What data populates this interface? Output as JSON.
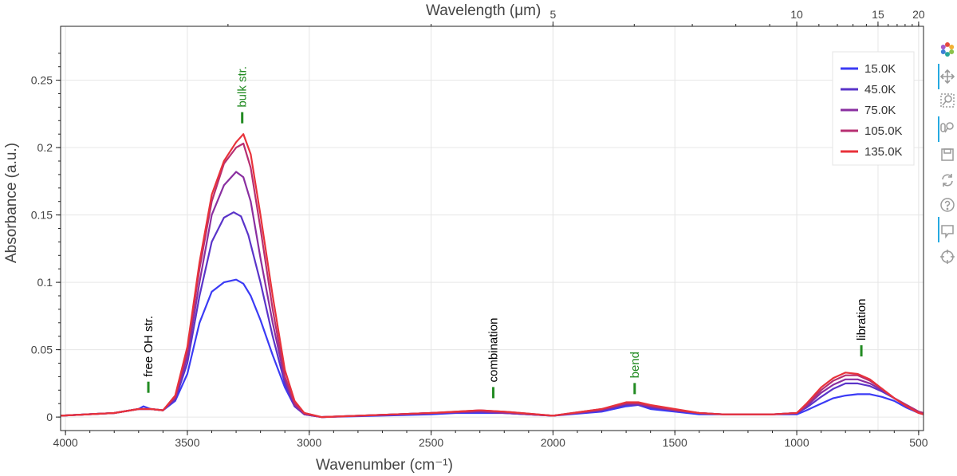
{
  "chart_data": {
    "type": "line",
    "xlabel": "Wavenumber (cm⁻¹)",
    "x2label": "Wavelength (μm)",
    "ylabel": "Absorbance (a.u.)",
    "xlim": [
      4020,
      480
    ],
    "ylim": [
      -0.01,
      0.29
    ],
    "x_ticks": [
      4000,
      3500,
      3000,
      2500,
      2000,
      1500,
      1000,
      500
    ],
    "y_ticks": [
      0,
      0.05,
      0.1,
      0.15,
      0.2,
      0.25
    ],
    "x2_ticks": [
      5,
      10,
      15,
      20
    ],
    "grid": true,
    "legend_position": "top-right",
    "series": [
      {
        "name": "15.0K",
        "color": "#3b3bf5",
        "points": [
          [
            4020,
            0.001
          ],
          [
            3800,
            0.003
          ],
          [
            3700,
            0.006
          ],
          [
            3680,
            0.008
          ],
          [
            3650,
            0.006
          ],
          [
            3600,
            0.005
          ],
          [
            3550,
            0.012
          ],
          [
            3500,
            0.032
          ],
          [
            3450,
            0.07
          ],
          [
            3400,
            0.093
          ],
          [
            3350,
            0.1
          ],
          [
            3300,
            0.102
          ],
          [
            3270,
            0.099
          ],
          [
            3240,
            0.09
          ],
          [
            3200,
            0.072
          ],
          [
            3150,
            0.046
          ],
          [
            3100,
            0.022
          ],
          [
            3060,
            0.008
          ],
          [
            3020,
            0.002
          ],
          [
            2950,
            0.0
          ],
          [
            2500,
            0.002
          ],
          [
            2400,
            0.003
          ],
          [
            2300,
            0.003
          ],
          [
            2200,
            0.003
          ],
          [
            2000,
            0.001
          ],
          [
            1800,
            0.004
          ],
          [
            1700,
            0.008
          ],
          [
            1650,
            0.009
          ],
          [
            1600,
            0.006
          ],
          [
            1500,
            0.004
          ],
          [
            1400,
            0.002
          ],
          [
            1300,
            0.002
          ],
          [
            1100,
            0.002
          ],
          [
            1000,
            0.002
          ],
          [
            960,
            0.005
          ],
          [
            900,
            0.01
          ],
          [
            850,
            0.014
          ],
          [
            800,
            0.016
          ],
          [
            750,
            0.017
          ],
          [
            700,
            0.017
          ],
          [
            650,
            0.015
          ],
          [
            600,
            0.012
          ],
          [
            550,
            0.007
          ],
          [
            500,
            0.003
          ],
          [
            480,
            0.002
          ]
        ]
      },
      {
        "name": "45.0K",
        "color": "#5a34c9",
        "points": [
          [
            4020,
            0.001
          ],
          [
            3800,
            0.003
          ],
          [
            3700,
            0.006
          ],
          [
            3650,
            0.006
          ],
          [
            3600,
            0.005
          ],
          [
            3550,
            0.013
          ],
          [
            3500,
            0.04
          ],
          [
            3450,
            0.09
          ],
          [
            3400,
            0.13
          ],
          [
            3350,
            0.148
          ],
          [
            3310,
            0.152
          ],
          [
            3280,
            0.149
          ],
          [
            3250,
            0.135
          ],
          [
            3200,
            0.1
          ],
          [
            3150,
            0.06
          ],
          [
            3100,
            0.025
          ],
          [
            3060,
            0.008
          ],
          [
            3020,
            0.002
          ],
          [
            2950,
            0.0
          ],
          [
            2500,
            0.003
          ],
          [
            2300,
            0.004
          ],
          [
            2200,
            0.003
          ],
          [
            2000,
            0.001
          ],
          [
            1800,
            0.005
          ],
          [
            1700,
            0.009
          ],
          [
            1650,
            0.009
          ],
          [
            1600,
            0.007
          ],
          [
            1500,
            0.005
          ],
          [
            1400,
            0.003
          ],
          [
            1300,
            0.002
          ],
          [
            1100,
            0.002
          ],
          [
            1000,
            0.003
          ],
          [
            960,
            0.007
          ],
          [
            900,
            0.015
          ],
          [
            850,
            0.021
          ],
          [
            800,
            0.025
          ],
          [
            750,
            0.025
          ],
          [
            700,
            0.023
          ],
          [
            650,
            0.019
          ],
          [
            600,
            0.014
          ],
          [
            550,
            0.009
          ],
          [
            500,
            0.004
          ],
          [
            480,
            0.003
          ]
        ]
      },
      {
        "name": "75.0K",
        "color": "#8a2fa0",
        "points": [
          [
            4020,
            0.001
          ],
          [
            3800,
            0.003
          ],
          [
            3700,
            0.006
          ],
          [
            3650,
            0.006
          ],
          [
            3600,
            0.005
          ],
          [
            3550,
            0.014
          ],
          [
            3500,
            0.045
          ],
          [
            3450,
            0.1
          ],
          [
            3400,
            0.15
          ],
          [
            3350,
            0.172
          ],
          [
            3300,
            0.182
          ],
          [
            3270,
            0.178
          ],
          [
            3240,
            0.16
          ],
          [
            3200,
            0.118
          ],
          [
            3150,
            0.07
          ],
          [
            3100,
            0.028
          ],
          [
            3060,
            0.009
          ],
          [
            3020,
            0.002
          ],
          [
            2950,
            0.0
          ],
          [
            2500,
            0.003
          ],
          [
            2300,
            0.004
          ],
          [
            2200,
            0.003
          ],
          [
            2000,
            0.001
          ],
          [
            1800,
            0.005
          ],
          [
            1700,
            0.01
          ],
          [
            1650,
            0.01
          ],
          [
            1600,
            0.008
          ],
          [
            1500,
            0.005
          ],
          [
            1400,
            0.003
          ],
          [
            1300,
            0.002
          ],
          [
            1100,
            0.002
          ],
          [
            1000,
            0.003
          ],
          [
            960,
            0.008
          ],
          [
            900,
            0.018
          ],
          [
            850,
            0.024
          ],
          [
            800,
            0.028
          ],
          [
            750,
            0.028
          ],
          [
            700,
            0.025
          ],
          [
            650,
            0.02
          ],
          [
            600,
            0.014
          ],
          [
            550,
            0.009
          ],
          [
            500,
            0.004
          ],
          [
            480,
            0.003
          ]
        ]
      },
      {
        "name": "105.0K",
        "color": "#b72f72",
        "points": [
          [
            4020,
            0.001
          ],
          [
            3800,
            0.003
          ],
          [
            3700,
            0.006
          ],
          [
            3650,
            0.006
          ],
          [
            3600,
            0.005
          ],
          [
            3550,
            0.015
          ],
          [
            3500,
            0.05
          ],
          [
            3450,
            0.11
          ],
          [
            3400,
            0.16
          ],
          [
            3350,
            0.188
          ],
          [
            3300,
            0.2
          ],
          [
            3270,
            0.203
          ],
          [
            3240,
            0.185
          ],
          [
            3200,
            0.14
          ],
          [
            3150,
            0.08
          ],
          [
            3100,
            0.03
          ],
          [
            3060,
            0.01
          ],
          [
            3020,
            0.003
          ],
          [
            2950,
            0.0
          ],
          [
            2500,
            0.003
          ],
          [
            2300,
            0.005
          ],
          [
            2200,
            0.004
          ],
          [
            2000,
            0.001
          ],
          [
            1800,
            0.006
          ],
          [
            1700,
            0.01
          ],
          [
            1650,
            0.01
          ],
          [
            1600,
            0.008
          ],
          [
            1500,
            0.005
          ],
          [
            1400,
            0.003
          ],
          [
            1300,
            0.002
          ],
          [
            1100,
            0.002
          ],
          [
            1000,
            0.003
          ],
          [
            960,
            0.009
          ],
          [
            900,
            0.02
          ],
          [
            850,
            0.027
          ],
          [
            800,
            0.031
          ],
          [
            750,
            0.031
          ],
          [
            700,
            0.027
          ],
          [
            650,
            0.021
          ],
          [
            600,
            0.014
          ],
          [
            550,
            0.009
          ],
          [
            500,
            0.004
          ],
          [
            480,
            0.003
          ]
        ]
      },
      {
        "name": "135.0K",
        "color": "#e8323a",
        "points": [
          [
            4020,
            0.001
          ],
          [
            3800,
            0.003
          ],
          [
            3700,
            0.006
          ],
          [
            3650,
            0.006
          ],
          [
            3600,
            0.005
          ],
          [
            3550,
            0.016
          ],
          [
            3500,
            0.052
          ],
          [
            3450,
            0.115
          ],
          [
            3400,
            0.165
          ],
          [
            3350,
            0.19
          ],
          [
            3300,
            0.204
          ],
          [
            3270,
            0.21
          ],
          [
            3240,
            0.195
          ],
          [
            3200,
            0.15
          ],
          [
            3150,
            0.09
          ],
          [
            3100,
            0.035
          ],
          [
            3060,
            0.012
          ],
          [
            3020,
            0.003
          ],
          [
            2950,
            0.0
          ],
          [
            2500,
            0.003
          ],
          [
            2300,
            0.005
          ],
          [
            2200,
            0.004
          ],
          [
            2000,
            0.001
          ],
          [
            1800,
            0.006
          ],
          [
            1700,
            0.011
          ],
          [
            1650,
            0.011
          ],
          [
            1600,
            0.009
          ],
          [
            1500,
            0.006
          ],
          [
            1400,
            0.003
          ],
          [
            1300,
            0.002
          ],
          [
            1100,
            0.002
          ],
          [
            1000,
            0.003
          ],
          [
            960,
            0.01
          ],
          [
            900,
            0.022
          ],
          [
            850,
            0.029
          ],
          [
            800,
            0.033
          ],
          [
            750,
            0.032
          ],
          [
            700,
            0.028
          ],
          [
            650,
            0.021
          ],
          [
            600,
            0.014
          ],
          [
            550,
            0.008
          ],
          [
            500,
            0.003
          ],
          [
            480,
            0.002
          ]
        ]
      }
    ],
    "annotations": [
      {
        "text": "free OH str.",
        "x": 3660,
        "y": 0.018,
        "color": "#000000"
      },
      {
        "text": "bulk str.",
        "x": 3275,
        "y": 0.218,
        "color": "#228b22"
      },
      {
        "text": "combination",
        "x": 2245,
        "y": 0.014,
        "color": "#000000"
      },
      {
        "text": "bend",
        "x": 1665,
        "y": 0.017,
        "color": "#228b22"
      },
      {
        "text": "libration",
        "x": 735,
        "y": 0.045,
        "color": "#000000"
      }
    ]
  },
  "toolbar": {
    "tools": [
      "bokeh-logo-icon",
      "pan-icon",
      "box-zoom-icon",
      "wheel-zoom-icon",
      "save-icon",
      "reset-icon",
      "help-icon",
      "hover-icon",
      "crosshair-icon"
    ]
  }
}
